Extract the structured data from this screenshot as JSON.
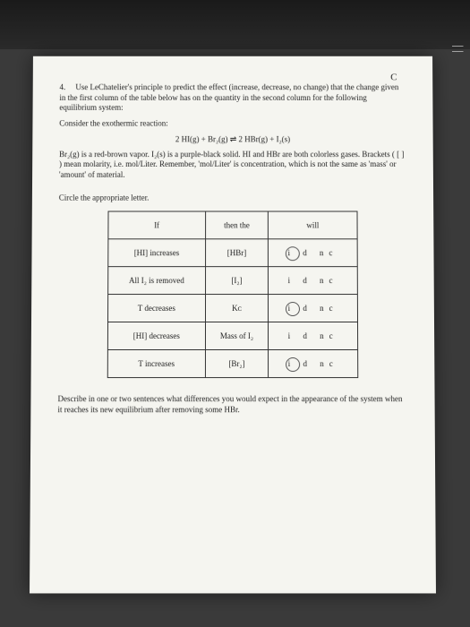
{
  "topRight": "C",
  "question": {
    "num": "4.",
    "text1": "Use LeChatelier's principle to predict the effect (increase, decrease, no change) that the change given in the first column of the table below has on the quantity in the second column for the following equilibrium system:",
    "consider": "Consider the exothermic reaction:",
    "equation": "2 HI(g)  +  Br₂(g)  ⇌  2 HBr(g)  +  I₂(s)",
    "text2": "Br₂(g) is a red-brown vapor. I₂(s) is a purple-black solid. HI and HBr are both colorless gases. Brackets ( [ ] ) mean molarity, i.e. mol/Liter. Remember, 'mol/Liter' is concentration, which is not the same as 'mass' or 'amount' of material.",
    "circleText": "Circle the appropriate letter."
  },
  "table": {
    "headers": {
      "c1": "If",
      "c2": "then the",
      "c3": "will"
    },
    "rows": [
      {
        "c1": "[HI] increases",
        "c2": "[HBr]",
        "circledIdx": 0
      },
      {
        "c1": "All I₂ is removed",
        "c2": "[I₂]",
        "circledIdx": 0
      },
      {
        "c1": "T decreases",
        "c2": "Kᴄ",
        "circledIdx": 0
      },
      {
        "c1": "[HI] decreases",
        "c2": "Mass of I₂",
        "circledIdx": 0
      },
      {
        "c1": "T increases",
        "c2": "[Br₂]",
        "circledIdx": 0
      }
    ],
    "choices": {
      "i": "i",
      "d": "d",
      "nc": "nc"
    }
  },
  "bottomQ": "Describe in one or two sentences what differences you would expect in the appearance of the system when it reaches its new equilibrium after removing some HBr.",
  "edgeMarks": "| |"
}
